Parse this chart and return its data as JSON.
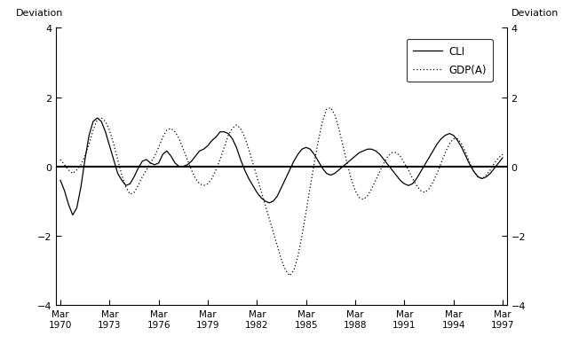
{
  "ylabel_left": "Deviation",
  "ylabel_right": "Deviation",
  "ylim": [
    -4,
    4
  ],
  "yticks": [
    -4,
    -2,
    0,
    2,
    4
  ],
  "legend_entries": [
    "CLI",
    "GDP(A)"
  ],
  "background_color": "#ffffff",
  "line_color": "#000000",
  "cli_data": [
    -0.4,
    -0.7,
    -1.1,
    -1.4,
    -1.2,
    -0.6,
    0.2,
    0.9,
    1.3,
    1.4,
    1.3,
    1.0,
    0.6,
    0.2,
    -0.2,
    -0.4,
    -0.55,
    -0.5,
    -0.3,
    -0.05,
    0.15,
    0.2,
    0.1,
    0.05,
    0.1,
    0.35,
    0.45,
    0.3,
    0.1,
    0.0,
    0.0,
    0.05,
    0.15,
    0.3,
    0.45,
    0.5,
    0.6,
    0.75,
    0.85,
    1.0,
    1.0,
    0.95,
    0.8,
    0.55,
    0.2,
    -0.1,
    -0.35,
    -0.55,
    -0.75,
    -0.9,
    -1.0,
    -1.05,
    -1.0,
    -0.85,
    -0.6,
    -0.35,
    -0.1,
    0.15,
    0.35,
    0.5,
    0.55,
    0.5,
    0.35,
    0.15,
    -0.05,
    -0.2,
    -0.25,
    -0.2,
    -0.1,
    0.0,
    0.1,
    0.2,
    0.3,
    0.4,
    0.45,
    0.5,
    0.5,
    0.45,
    0.35,
    0.2,
    0.05,
    -0.1,
    -0.25,
    -0.4,
    -0.5,
    -0.55,
    -0.5,
    -0.35,
    -0.15,
    0.05,
    0.25,
    0.45,
    0.65,
    0.8,
    0.9,
    0.95,
    0.9,
    0.75,
    0.55,
    0.3,
    0.05,
    -0.15,
    -0.3,
    -0.35,
    -0.3,
    -0.2,
    -0.05,
    0.1,
    0.25
  ],
  "gdpa_data": [
    0.2,
    0.05,
    -0.1,
    -0.2,
    -0.1,
    0.05,
    0.3,
    0.65,
    1.05,
    1.35,
    1.4,
    1.3,
    1.05,
    0.65,
    0.2,
    -0.25,
    -0.6,
    -0.8,
    -0.75,
    -0.55,
    -0.3,
    -0.1,
    0.1,
    0.3,
    0.55,
    0.85,
    1.05,
    1.1,
    1.0,
    0.8,
    0.5,
    0.2,
    -0.1,
    -0.35,
    -0.5,
    -0.55,
    -0.5,
    -0.35,
    -0.1,
    0.2,
    0.55,
    0.9,
    1.1,
    1.2,
    1.1,
    0.85,
    0.5,
    0.1,
    -0.3,
    -0.7,
    -1.1,
    -1.5,
    -1.9,
    -2.3,
    -2.7,
    -3.0,
    -3.15,
    -3.0,
    -2.6,
    -2.0,
    -1.3,
    -0.6,
    0.1,
    0.75,
    1.3,
    1.65,
    1.7,
    1.5,
    1.1,
    0.6,
    0.1,
    -0.35,
    -0.7,
    -0.9,
    -0.95,
    -0.85,
    -0.65,
    -0.4,
    -0.15,
    0.1,
    0.3,
    0.4,
    0.4,
    0.3,
    0.1,
    -0.1,
    -0.35,
    -0.55,
    -0.7,
    -0.75,
    -0.65,
    -0.45,
    -0.2,
    0.1,
    0.4,
    0.65,
    0.8,
    0.8,
    0.65,
    0.4,
    0.1,
    -0.15,
    -0.3,
    -0.35,
    -0.25,
    -0.1,
    0.1,
    0.25,
    0.35
  ]
}
